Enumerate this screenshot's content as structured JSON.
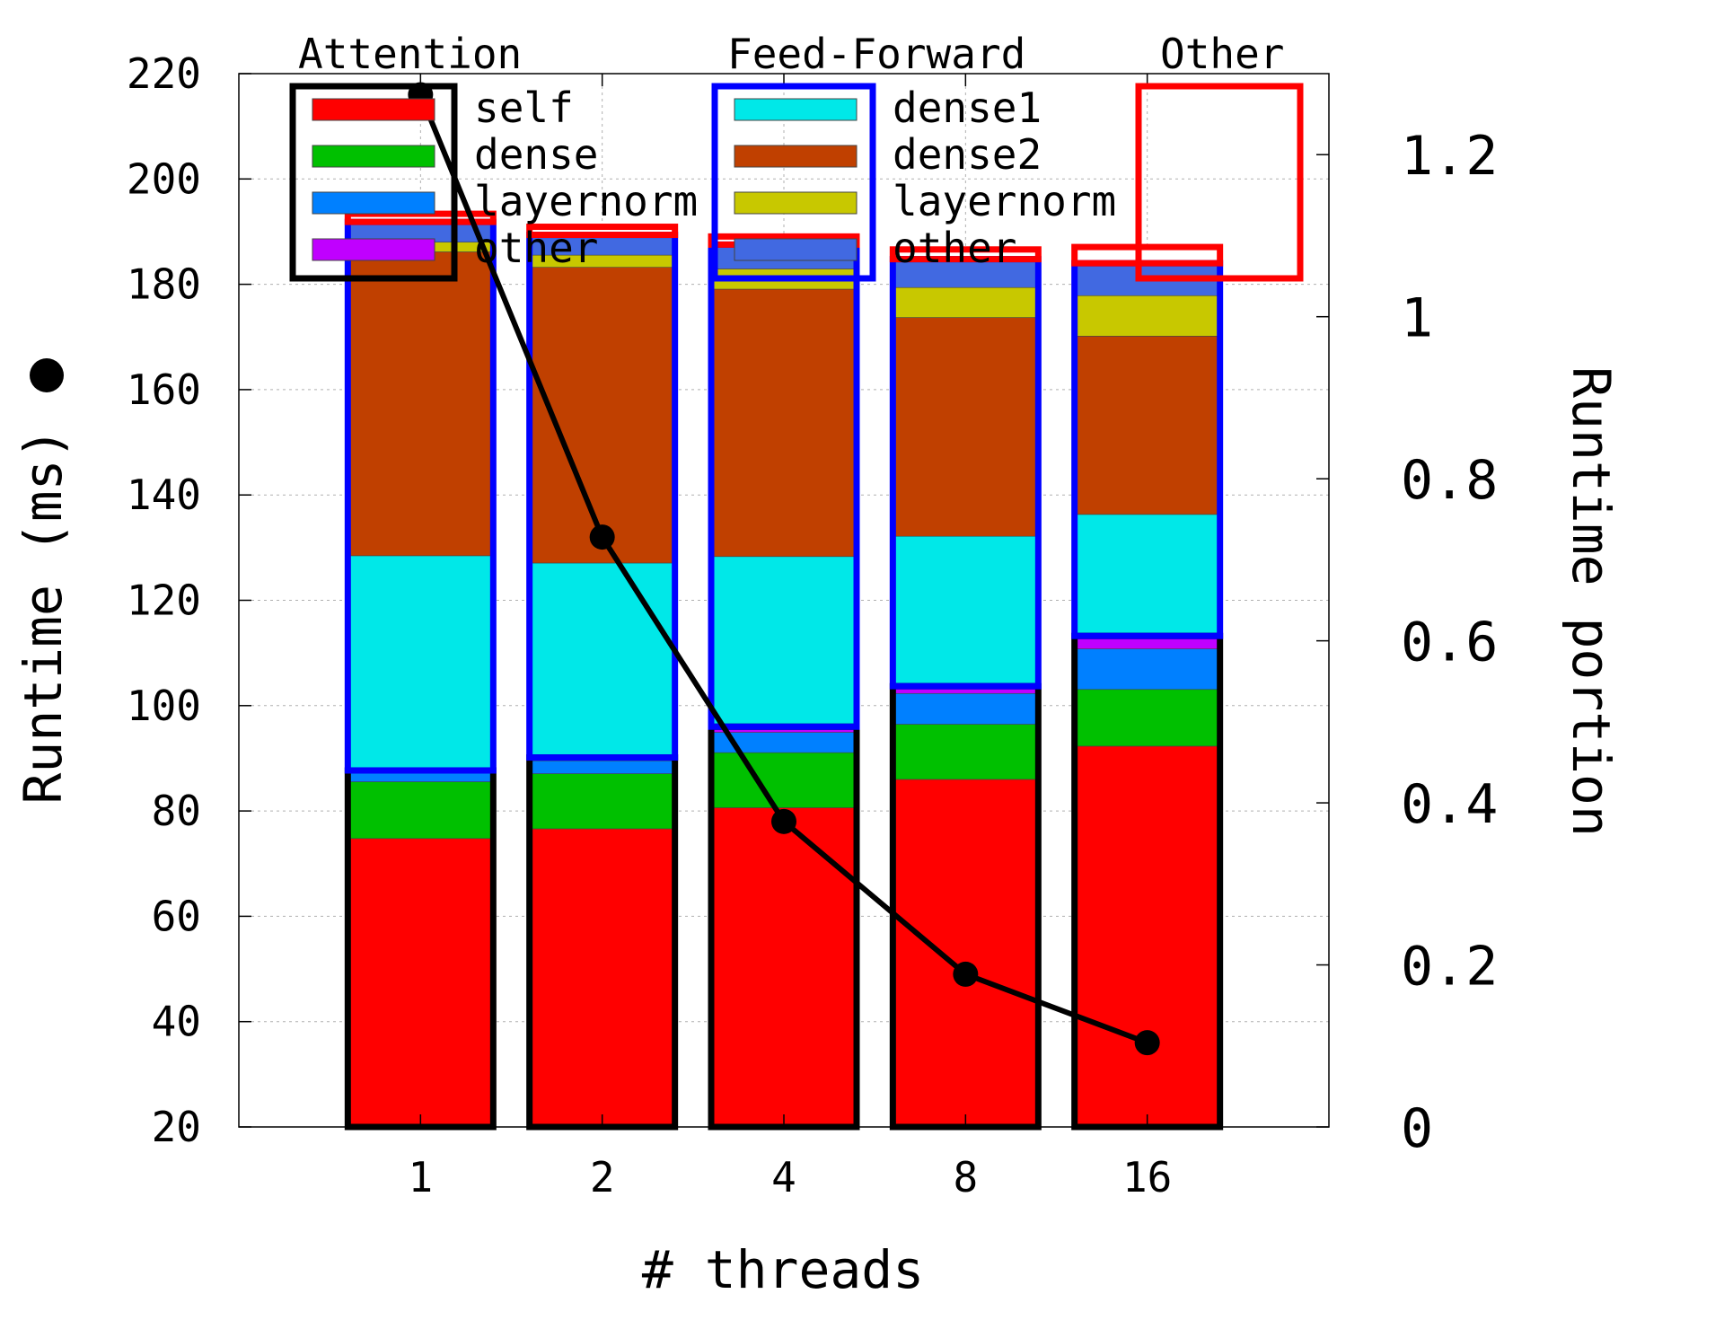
{
  "chart_data": {
    "type": "bar",
    "stacked": true,
    "categories": [
      "1",
      "2",
      "4",
      "8",
      "16"
    ],
    "xlabel": "# threads",
    "ylabel_left": "Runtime (ms)",
    "ylabel_right": "Runtime portion",
    "ylim_left": [
      20,
      220
    ],
    "ylim_right": [
      0,
      1.3
    ],
    "yticks_left": [
      "20",
      "40",
      "60",
      "80",
      "100",
      "120",
      "140",
      "160",
      "180",
      "200",
      "220"
    ],
    "yticks_right": [
      "0",
      "0.2",
      "0.4",
      "0.6",
      "0.8",
      "1",
      "1.2"
    ],
    "grid": true,
    "legend_position": "top",
    "groups": [
      {
        "title": "Attention",
        "border_color": "#000000",
        "items": [
          "self",
          "dense",
          "layernorm",
          "other"
        ]
      },
      {
        "title": "Feed-Forward",
        "border_color": "#0000ff",
        "items": [
          "dense1",
          "dense2",
          "layernorm",
          "other"
        ]
      },
      {
        "title": "Other",
        "border_color": "#ff0000",
        "items": []
      }
    ],
    "series": [
      {
        "name": "self",
        "group": "Attention",
        "color": "#ff0000",
        "values": [
          0.356,
          0.368,
          0.394,
          0.429,
          0.47
        ]
      },
      {
        "name": "dense",
        "group": "Attention",
        "color": "#00c000",
        "values": [
          0.07,
          0.068,
          0.068,
          0.068,
          0.07
        ]
      },
      {
        "name": "layernorm",
        "group": "Attention",
        "color": "#0080ff",
        "values": [
          0.012,
          0.016,
          0.025,
          0.038,
          0.05
        ]
      },
      {
        "name": "other",
        "group": "Attention",
        "color": "#c000ff",
        "values": [
          0.002,
          0.004,
          0.007,
          0.009,
          0.016
        ]
      },
      {
        "name": "dense1",
        "group": "Feed-Forward",
        "color": "#00e8e8",
        "values": [
          0.265,
          0.24,
          0.21,
          0.185,
          0.15
        ]
      },
      {
        "name": "dense2",
        "group": "Feed-Forward",
        "color": "#c04000",
        "values": [
          0.375,
          0.365,
          0.33,
          0.27,
          0.22
        ]
      },
      {
        "name": "layernorm",
        "group": "Feed-Forward",
        "color": "#c8c800",
        "values": [
          0.012,
          0.015,
          0.025,
          0.037,
          0.05
        ]
      },
      {
        "name": "other",
        "group": "Feed-Forward",
        "color": "#4169e1",
        "values": [
          0.025,
          0.025,
          0.03,
          0.035,
          0.04
        ]
      },
      {
        "name": "Other",
        "group": "Other",
        "color": "#ffffff",
        "values": [
          0.01,
          0.01,
          0.01,
          0.012,
          0.02
        ]
      }
    ],
    "runtime_ms": {
      "name": "Runtime (ms)",
      "axis": "left",
      "color": "#000000",
      "values": [
        216,
        132,
        78,
        49,
        36
      ]
    }
  }
}
